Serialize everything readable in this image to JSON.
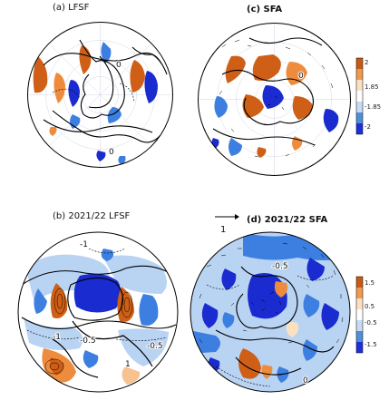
{
  "figure": {
    "panels": [
      {
        "id": "a",
        "title": "(a) LFSF"
      },
      {
        "id": "c",
        "title": "(c) SFA"
      },
      {
        "id": "b",
        "title": "(b) 2021/22 LFSF"
      },
      {
        "id": "d",
        "title": "(d) 2021/22 SFA"
      }
    ],
    "panel_a": {
      "contour_labels": [
        "0",
        "0"
      ]
    },
    "panel_c": {
      "contour_labels": [
        "0"
      ]
    },
    "panel_b": {
      "contour_labels": [
        "-1",
        "-1",
        "-0.5",
        "-0.5",
        "1"
      ]
    },
    "panel_d": {
      "contour_labels": [
        "-0.5",
        "0"
      ]
    },
    "colorbar_top": {
      "ticks": [
        "2",
        "1.85",
        "-1.85",
        "-2"
      ],
      "colors": [
        "#c85a12",
        "#ef9a4e",
        "#fde0c0",
        "#ffffff",
        "#c6dcf5",
        "#4f8fd9",
        "#1f2fd8"
      ]
    },
    "colorbar_bottom": {
      "ticks": [
        "1.5",
        "0.5",
        "-0.5",
        "-1.5"
      ],
      "colors": [
        "#c85a12",
        "#ef9a4e",
        "#fde0c0",
        "#ffffff",
        "#c6dcf5",
        "#4f8fd9",
        "#1f2fd8"
      ]
    },
    "reference_vector": {
      "label": "1"
    },
    "palette": {
      "orange_dark": "#cf5f16",
      "orange": "#ee8c3e",
      "orange_light": "#f8c190",
      "blue_dark": "#1a2bd0",
      "blue": "#3d7fe0",
      "blue_light": "#b9d3f3"
    }
  }
}
